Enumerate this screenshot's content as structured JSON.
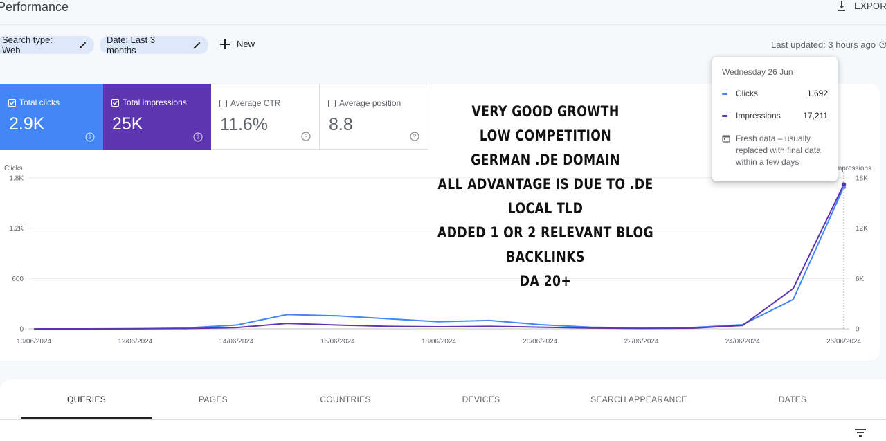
{
  "header": {
    "title": "Performance",
    "export_label": "EXPORT"
  },
  "filters": {
    "search_type": "Search type: Web",
    "date": "Date: Last 3 months",
    "new_label": "New",
    "last_updated": "Last updated: 3 hours ago"
  },
  "metrics": [
    {
      "label": "Total clicks",
      "value": "2.9K",
      "checked": true,
      "color": "#4285f4"
    },
    {
      "label": "Total impressions",
      "value": "25K",
      "checked": true,
      "color": "#5e35b1"
    },
    {
      "label": "Average CTR",
      "value": "11.6%",
      "checked": false
    },
    {
      "label": "Average position",
      "value": "8.8",
      "checked": false
    }
  ],
  "overlay_text": [
    "Very good growth",
    "Low competition",
    "German .de domain",
    "All advantage is due to .de local TLD",
    "Added 1 or 2 relevant blog backlinks",
    "DA 20+"
  ],
  "tooltip": {
    "date": "Wednesday 26 Jun",
    "rows": [
      {
        "name": "Clicks",
        "value": "1,692",
        "color": "#4285f4"
      },
      {
        "name": "Impressions",
        "value": "17,211",
        "color": "#5e35b1"
      }
    ],
    "note": "Fresh data – usually replaced with final data within a few days"
  },
  "chart_data": {
    "type": "line",
    "left_axis_label": "Clicks",
    "right_axis_label": "Impressions",
    "left_ticks": [
      "0",
      "600",
      "1.2K",
      "1.8K"
    ],
    "right_ticks": [
      "0",
      "6K",
      "12K",
      "18K"
    ],
    "x_ticks": [
      "10/06/2024",
      "12/06/2024",
      "14/06/2024",
      "16/06/2024",
      "18/06/2024",
      "20/06/2024",
      "22/06/2024",
      "24/06/2024",
      "26/06/2024"
    ],
    "x": [
      "10/06/2024",
      "11/06/2024",
      "12/06/2024",
      "13/06/2024",
      "14/06/2024",
      "15/06/2024",
      "16/06/2024",
      "17/06/2024",
      "18/06/2024",
      "19/06/2024",
      "20/06/2024",
      "21/06/2024",
      "22/06/2024",
      "23/06/2024",
      "24/06/2024",
      "25/06/2024",
      "26/06/2024"
    ],
    "ylim_left": [
      0,
      1800
    ],
    "ylim_right": [
      0,
      18000
    ],
    "grid": true,
    "series": [
      {
        "name": "Clicks",
        "axis": "left",
        "color": "#4285f4",
        "values": [
          0,
          0,
          2,
          10,
          45,
          170,
          155,
          120,
          85,
          100,
          50,
          20,
          10,
          15,
          50,
          350,
          1692
        ]
      },
      {
        "name": "Impressions",
        "axis": "right",
        "color": "#5e35b1",
        "values": [
          0,
          0,
          10,
          30,
          150,
          650,
          450,
          300,
          250,
          300,
          200,
          100,
          40,
          80,
          400,
          4800,
          17211
        ]
      }
    ]
  },
  "tabs": [
    "QUERIES",
    "PAGES",
    "COUNTRIES",
    "DEVICES",
    "SEARCH APPEARANCE",
    "DATES"
  ]
}
